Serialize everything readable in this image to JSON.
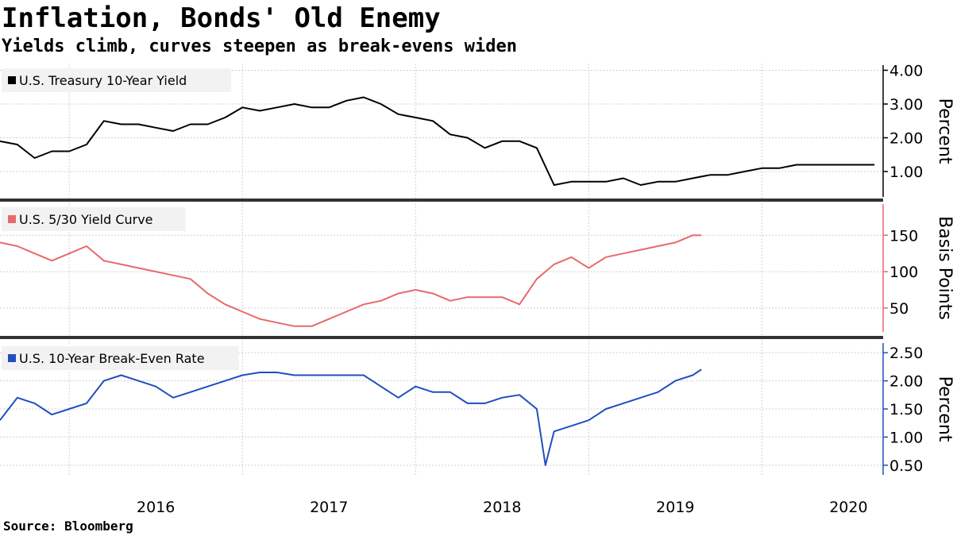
{
  "title": "Inflation, Bonds' Old Enemy",
  "subtitle": "Yields climb, curves steepen as break-evens widen",
  "source": "Source:  Bloomberg",
  "chart_data": [
    {
      "type": "line",
      "series": [
        {
          "name": "U.S. Treasury 10-Year Yield",
          "color": "#000000",
          "x": [
            2015.6,
            2015.7,
            2015.8,
            2015.9,
            2016.0,
            2016.1,
            2016.2,
            2016.3,
            2016.4,
            2016.5,
            2016.6,
            2016.7,
            2016.8,
            2016.9,
            2017.0,
            2017.1,
            2017.2,
            2017.3,
            2017.4,
            2017.5,
            2017.6,
            2017.7,
            2017.8,
            2017.9,
            2018.0,
            2018.1,
            2018.2,
            2018.3,
            2018.4,
            2018.5,
            2018.6,
            2018.7,
            2018.8,
            2018.9,
            2019.0,
            2019.1,
            2019.2,
            2019.3,
            2019.4,
            2019.5,
            2019.6,
            2019.7,
            2019.75,
            2019.8,
            2019.9,
            2020.0,
            2020.1,
            2020.2,
            2020.3,
            2020.4,
            2020.5,
            2020.6,
            2020.65
          ],
          "values": [
            1.9,
            1.8,
            1.4,
            1.6,
            1.6,
            1.8,
            2.5,
            2.4,
            2.4,
            2.3,
            2.2,
            2.4,
            2.4,
            2.6,
            2.9,
            2.8,
            2.9,
            3.0,
            2.9,
            2.9,
            3.1,
            3.2,
            3.0,
            2.7,
            2.6,
            2.5,
            2.1,
            2.0,
            1.7,
            1.9,
            1.9,
            1.7,
            0.6,
            0.7,
            0.7,
            0.7,
            0.8,
            0.6,
            0.7,
            0.7,
            0.8,
            0.9,
            0.9,
            0.9,
            1.0,
            1.1,
            1.1,
            1.2,
            1.2,
            1.2,
            1.2,
            1.2,
            1.2
          ]
        }
      ],
      "unit_label": "Percent",
      "yticks": [
        "1.00",
        "2.00",
        "3.00",
        "4.00"
      ],
      "ylim": [
        0.2,
        4.2
      ],
      "legend_position": "top-left"
    },
    {
      "type": "line",
      "series": [
        {
          "name": "U.S. 5/30 Yield Curve",
          "color": "#e8696b",
          "x": [
            2015.6,
            2015.7,
            2015.8,
            2015.9,
            2016.0,
            2016.1,
            2016.2,
            2016.3,
            2016.4,
            2016.5,
            2016.6,
            2016.7,
            2016.8,
            2016.9,
            2017.0,
            2017.1,
            2017.2,
            2017.3,
            2017.4,
            2017.5,
            2017.6,
            2017.7,
            2017.8,
            2017.9,
            2018.0,
            2018.1,
            2018.2,
            2018.3,
            2018.4,
            2018.5,
            2018.6,
            2018.7,
            2018.75,
            2018.8,
            2018.9,
            2019.0,
            2019.1,
            2019.2,
            2019.3,
            2019.4,
            2019.5,
            2019.6,
            2019.65
          ],
          "values": [
            140,
            135,
            125,
            115,
            125,
            135,
            115,
            110,
            105,
            100,
            95,
            90,
            70,
            55,
            45,
            35,
            30,
            25,
            25,
            35,
            45,
            55,
            60,
            70,
            75,
            70,
            60,
            65,
            65,
            65,
            55,
            90,
            100,
            110,
            120,
            105,
            120,
            125,
            130,
            135,
            140,
            150,
            150
          ]
        }
      ],
      "unit_label": "Basis Points",
      "yticks": [
        "50",
        "100",
        "150"
      ],
      "ylim": [
        15,
        195
      ],
      "legend_position": "top-left"
    },
    {
      "type": "line",
      "series": [
        {
          "name": "U.S. 10-Year Break-Even Rate",
          "color": "#1f4fbf",
          "x": [
            2015.6,
            2015.7,
            2015.8,
            2015.9,
            2016.0,
            2016.1,
            2016.2,
            2016.3,
            2016.4,
            2016.5,
            2016.6,
            2016.7,
            2016.8,
            2016.9,
            2017.0,
            2017.1,
            2017.2,
            2017.3,
            2017.4,
            2017.5,
            2017.6,
            2017.7,
            2017.8,
            2017.9,
            2018.0,
            2018.1,
            2018.2,
            2018.3,
            2018.4,
            2018.5,
            2018.6,
            2018.7,
            2018.75,
            2018.8,
            2018.9,
            2019.0,
            2019.1,
            2019.2,
            2019.3,
            2019.4,
            2019.5,
            2019.6,
            2019.65
          ],
          "values": [
            1.3,
            1.7,
            1.6,
            1.4,
            1.5,
            1.6,
            2.0,
            2.1,
            2.0,
            1.9,
            1.7,
            1.8,
            1.9,
            2.0,
            2.1,
            2.15,
            2.15,
            2.1,
            2.1,
            2.1,
            2.1,
            2.1,
            1.9,
            1.7,
            1.9,
            1.8,
            1.8,
            1.6,
            1.6,
            1.7,
            1.75,
            1.5,
            0.5,
            1.1,
            1.2,
            1.3,
            1.5,
            1.6,
            1.7,
            1.8,
            2.0,
            2.1,
            2.2
          ]
        }
      ],
      "unit_label": "Percent",
      "yticks": [
        "0.50",
        "1.00",
        "1.50",
        "2.00",
        "2.50"
      ],
      "ylim": [
        0.3,
        2.7
      ],
      "legend_position": "top-left"
    }
  ],
  "x_axis": {
    "ticks": [
      "2016",
      "2017",
      "2018",
      "2019",
      "2020"
    ],
    "tick_values": [
      2016.0,
      2017.0,
      2018.0,
      2019.0,
      2020.0
    ],
    "xlim": [
      2015.6,
      2020.7
    ]
  }
}
